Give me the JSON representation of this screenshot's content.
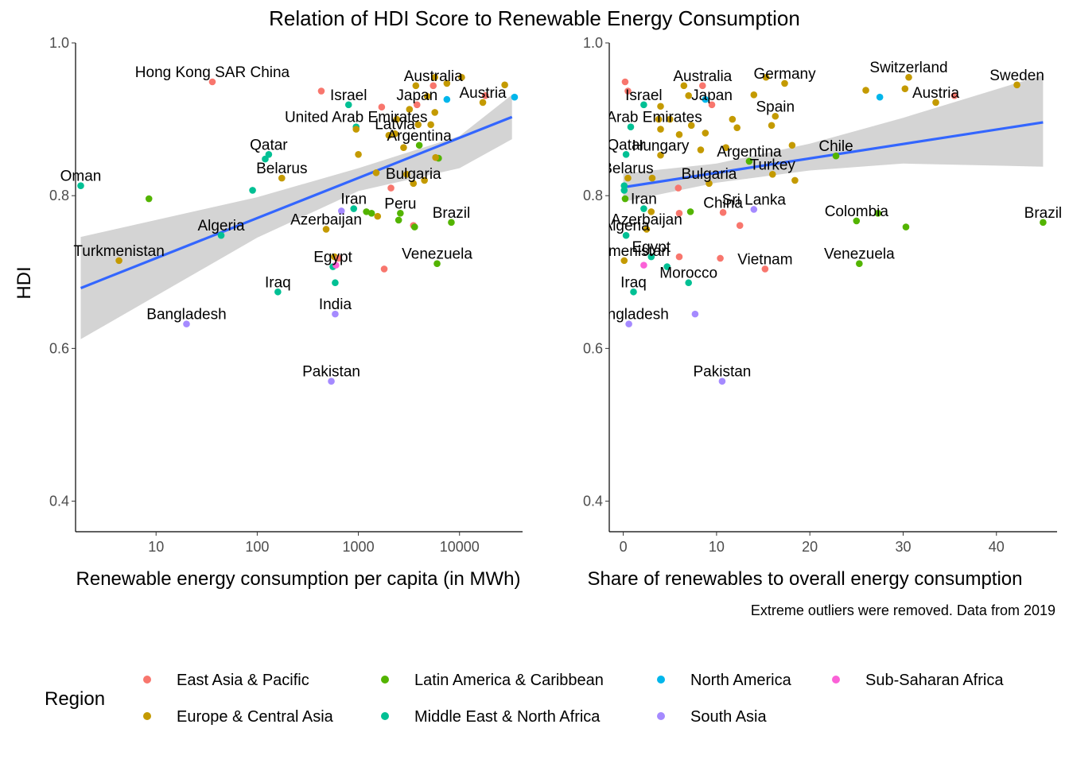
{
  "title": "Relation of HDI Score to Renewable Energy Consumption",
  "caption": "Extreme outliers were removed. Data from 2019",
  "y_axis_title": "HDI",
  "legend": {
    "title": "Region",
    "items": [
      {
        "name": "East Asia & Pacific",
        "color": "#F8766D"
      },
      {
        "name": "Europe & Central Asia",
        "color": "#C49A00"
      },
      {
        "name": "Latin America & Caribbean",
        "color": "#53B400"
      },
      {
        "name": "Middle East & North Africa",
        "color": "#00C094"
      },
      {
        "name": "North America",
        "color": "#00B6EB"
      },
      {
        "name": "South Asia",
        "color": "#A58AFF"
      },
      {
        "name": "Sub-Saharan Africa",
        "color": "#FB61D7"
      }
    ]
  },
  "chart_data": [
    {
      "type": "scatter",
      "xlabel": "Renewable energy consumption per capita (in MWh)",
      "ylabel": "HDI",
      "x_scale": "log10",
      "xlim": [
        1.6,
        42000
      ],
      "ylim": [
        0.36,
        1.0
      ],
      "x_ticks": [
        10,
        100,
        1000,
        10000
      ],
      "x_tick_labels": [
        "10",
        "100",
        "1000",
        "10000"
      ],
      "y_ticks": [
        0.4,
        0.6,
        0.8,
        1.0
      ],
      "y_tick_labels": [
        "0.4",
        "0.6",
        "0.8",
        "1.0"
      ],
      "trend_line": {
        "x": [
          1.8,
          33000
        ],
        "y": [
          0.679,
          0.903
        ]
      },
      "confidence_band": {
        "x": [
          1.8,
          100,
          1000,
          10000,
          33000
        ],
        "upper": [
          0.746,
          0.798,
          0.836,
          0.878,
          0.932
        ],
        "lower": [
          0.612,
          0.745,
          0.806,
          0.836,
          0.874
        ]
      },
      "points": [
        {
          "x": 36,
          "y": 0.949,
          "region": "East Asia & Pacific",
          "label": "Hong Kong SAR China"
        },
        {
          "x": 430,
          "y": 0.937,
          "region": "East Asia & Pacific"
        },
        {
          "x": 800,
          "y": 0.919,
          "region": "Middle East & North Africa",
          "label": "Israel"
        },
        {
          "x": 950,
          "y": 0.89,
          "region": "Middle East & North Africa",
          "label": "United Arab Emirates"
        },
        {
          "x": 1700,
          "y": 0.916,
          "region": "East Asia & Pacific"
        },
        {
          "x": 3800,
          "y": 0.919,
          "region": "East Asia & Pacific",
          "label": "Japan"
        },
        {
          "x": 5500,
          "y": 0.944,
          "region": "East Asia & Pacific",
          "label": "Australia"
        },
        {
          "x": 7500,
          "y": 0.926,
          "region": "North America"
        },
        {
          "x": 35000,
          "y": 0.929,
          "region": "North America"
        },
        {
          "x": 18000,
          "y": 0.931,
          "region": "East Asia & Pacific"
        },
        {
          "x": 17000,
          "y": 0.922,
          "region": "Europe & Central Asia",
          "label": "Austria"
        },
        {
          "x": 28000,
          "y": 0.945,
          "region": "Europe & Central Asia"
        },
        {
          "x": 10500,
          "y": 0.955,
          "region": "Europe & Central Asia"
        },
        {
          "x": 5700,
          "y": 0.955,
          "region": "Europe & Central Asia"
        },
        {
          "x": 7500,
          "y": 0.947,
          "region": "Europe & Central Asia"
        },
        {
          "x": 3700,
          "y": 0.944,
          "region": "Europe & Central Asia"
        },
        {
          "x": 4800,
          "y": 0.93,
          "region": "Europe & Central Asia"
        },
        {
          "x": 2400,
          "y": 0.9,
          "region": "Europe & Central Asia"
        },
        {
          "x": 3200,
          "y": 0.913,
          "region": "Europe & Central Asia"
        },
        {
          "x": 3900,
          "y": 0.893,
          "region": "Europe & Central Asia"
        },
        {
          "x": 5700,
          "y": 0.909,
          "region": "Europe & Central Asia"
        },
        {
          "x": 5200,
          "y": 0.893,
          "region": "Europe & Central Asia"
        },
        {
          "x": 950,
          "y": 0.887,
          "region": "Europe & Central Asia"
        },
        {
          "x": 2000,
          "y": 0.879,
          "region": "Europe & Central Asia"
        },
        {
          "x": 2300,
          "y": 0.881,
          "region": "Europe & Central Asia",
          "label": "Latvia"
        },
        {
          "x": 1000,
          "y": 0.854,
          "region": "Europe & Central Asia"
        },
        {
          "x": 2800,
          "y": 0.863,
          "region": "Europe & Central Asia"
        },
        {
          "x": 4000,
          "y": 0.866,
          "region": "Latin America & Caribbean",
          "label": "Argentina"
        },
        {
          "x": 6200,
          "y": 0.849,
          "region": "Latin America & Caribbean"
        },
        {
          "x": 5800,
          "y": 0.85,
          "region": "Europe & Central Asia"
        },
        {
          "x": 1500,
          "y": 0.83,
          "region": "Europe & Central Asia"
        },
        {
          "x": 3000,
          "y": 0.828,
          "region": "Europe & Central Asia"
        },
        {
          "x": 3500,
          "y": 0.816,
          "region": "Europe & Central Asia",
          "label": "Bulgaria"
        },
        {
          "x": 4500,
          "y": 0.82,
          "region": "Europe & Central Asia"
        },
        {
          "x": 2100,
          "y": 0.81,
          "region": "East Asia & Pacific"
        },
        {
          "x": 175,
          "y": 0.823,
          "region": "Europe & Central Asia",
          "label": "Belarus"
        },
        {
          "x": 120,
          "y": 0.848,
          "region": "Middle East & North Africa"
        },
        {
          "x": 130,
          "y": 0.854,
          "region": "Middle East & North Africa",
          "label": "Qatar"
        },
        {
          "x": 90,
          "y": 0.807,
          "region": "Middle East & North Africa"
        },
        {
          "x": 1.8,
          "y": 0.813,
          "region": "Middle East & North Africa",
          "label": "Oman"
        },
        {
          "x": 8.5,
          "y": 0.796,
          "region": "Latin America & Caribbean"
        },
        {
          "x": 44,
          "y": 0.748,
          "region": "Middle East & North Africa",
          "label": "Algeria"
        },
        {
          "x": 4.3,
          "y": 0.715,
          "region": "Europe & Central Asia",
          "label": "Turkmenistan"
        },
        {
          "x": 20,
          "y": 0.632,
          "region": "South Asia",
          "label": "Bangladesh"
        },
        {
          "x": 900,
          "y": 0.783,
          "region": "Middle East & North Africa",
          "label": "Iran"
        },
        {
          "x": 1200,
          "y": 0.779,
          "region": "Latin America & Caribbean"
        },
        {
          "x": 1350,
          "y": 0.777,
          "region": "Latin America & Caribbean"
        },
        {
          "x": 1550,
          "y": 0.773,
          "region": "Europe & Central Asia"
        },
        {
          "x": 680,
          "y": 0.78,
          "region": "South Asia"
        },
        {
          "x": 480,
          "y": 0.756,
          "region": "Europe & Central Asia",
          "label": "Azerbaijan"
        },
        {
          "x": 2600,
          "y": 0.777,
          "region": "Latin America & Caribbean",
          "label": "Peru"
        },
        {
          "x": 2500,
          "y": 0.768,
          "region": "Latin America & Caribbean"
        },
        {
          "x": 3500,
          "y": 0.761,
          "region": "East Asia & Pacific"
        },
        {
          "x": 3600,
          "y": 0.759,
          "region": "Latin America & Caribbean"
        },
        {
          "x": 8300,
          "y": 0.765,
          "region": "Latin America & Caribbean",
          "label": "Brazil"
        },
        {
          "x": 6000,
          "y": 0.711,
          "region": "Latin America & Caribbean",
          "label": "Venezuela"
        },
        {
          "x": 1800,
          "y": 0.704,
          "region": "East Asia & Pacific"
        },
        {
          "x": 560,
          "y": 0.707,
          "region": "Middle East & North Africa",
          "label": "Egypt"
        },
        {
          "x": 580,
          "y": 0.72,
          "region": "Europe & Central Asia"
        },
        {
          "x": 640,
          "y": 0.718,
          "region": "East Asia & Pacific"
        },
        {
          "x": 600,
          "y": 0.709,
          "region": "Sub-Saharan Africa"
        },
        {
          "x": 590,
          "y": 0.686,
          "region": "Middle East & North Africa"
        },
        {
          "x": 160,
          "y": 0.674,
          "region": "Middle East & North Africa",
          "label": "Iraq"
        },
        {
          "x": 590,
          "y": 0.645,
          "region": "South Asia",
          "label": "India"
        },
        {
          "x": 540,
          "y": 0.557,
          "region": "South Asia",
          "label": "Pakistan"
        }
      ]
    },
    {
      "type": "scatter",
      "xlabel": "Share of renewables to overall energy consumption",
      "ylabel": "HDI",
      "x_scale": "linear",
      "xlim": [
        -1.5,
        46.5
      ],
      "ylim": [
        0.36,
        1.0
      ],
      "x_ticks": [
        0,
        10,
        20,
        30,
        40
      ],
      "x_tick_labels": [
        "0",
        "10",
        "20",
        "30",
        "40"
      ],
      "y_ticks": [
        0.4,
        0.6,
        0.8,
        1.0
      ],
      "y_tick_labels": [
        "0.4",
        "0.6",
        "0.8",
        "1.0"
      ],
      "trend_line": {
        "x": [
          0,
          45
        ],
        "y": [
          0.811,
          0.896
        ]
      },
      "confidence_band": {
        "x": [
          0,
          10,
          20,
          30,
          45
        ],
        "upper": [
          0.829,
          0.842,
          0.868,
          0.902,
          0.958
        ],
        "lower": [
          0.792,
          0.817,
          0.833,
          0.842,
          0.838
        ]
      },
      "points": [
        {
          "x": 0.2,
          "y": 0.949,
          "region": "East Asia & Pacific"
        },
        {
          "x": 0.5,
          "y": 0.937,
          "region": "East Asia & Pacific"
        },
        {
          "x": 2.2,
          "y": 0.919,
          "region": "Middle East & North Africa",
          "label": "Israel"
        },
        {
          "x": 0.8,
          "y": 0.89,
          "region": "Middle East & North Africa",
          "label": "United Arab Emirates"
        },
        {
          "x": 9.5,
          "y": 0.919,
          "region": "East Asia & Pacific",
          "label": "Japan"
        },
        {
          "x": 8.5,
          "y": 0.944,
          "region": "East Asia & Pacific",
          "label": "Australia"
        },
        {
          "x": 8.8,
          "y": 0.926,
          "region": "North America"
        },
        {
          "x": 27.5,
          "y": 0.929,
          "region": "North America"
        },
        {
          "x": 35.5,
          "y": 0.931,
          "region": "East Asia & Pacific"
        },
        {
          "x": 33.5,
          "y": 0.922,
          "region": "Europe & Central Asia",
          "label": "Austria"
        },
        {
          "x": 42.2,
          "y": 0.945,
          "region": "Europe & Central Asia",
          "label": "Sweden"
        },
        {
          "x": 30.6,
          "y": 0.955,
          "region": "Europe & Central Asia",
          "label": "Switzerland"
        },
        {
          "x": 15.3,
          "y": 0.955,
          "region": "Europe & Central Asia"
        },
        {
          "x": 17.3,
          "y": 0.947,
          "region": "Europe & Central Asia",
          "label": "Germany"
        },
        {
          "x": 6.5,
          "y": 0.944,
          "region": "Europe & Central Asia"
        },
        {
          "x": 26,
          "y": 0.938,
          "region": "Europe & Central Asia"
        },
        {
          "x": 30.2,
          "y": 0.94,
          "region": "Europe & Central Asia"
        },
        {
          "x": 14,
          "y": 0.932,
          "region": "Europe & Central Asia"
        },
        {
          "x": 7,
          "y": 0.931,
          "region": "Europe & Central Asia"
        },
        {
          "x": 16.3,
          "y": 0.904,
          "region": "Europe & Central Asia",
          "label": "Spain"
        },
        {
          "x": 4,
          "y": 0.917,
          "region": "Europe & Central Asia"
        },
        {
          "x": 3.8,
          "y": 0.9,
          "region": "Europe & Central Asia"
        },
        {
          "x": 5,
          "y": 0.9,
          "region": "Europe & Central Asia"
        },
        {
          "x": 11.7,
          "y": 0.9,
          "region": "Europe & Central Asia"
        },
        {
          "x": 15.9,
          "y": 0.892,
          "region": "Europe & Central Asia"
        },
        {
          "x": 7.3,
          "y": 0.892,
          "region": "Europe & Central Asia"
        },
        {
          "x": 12.2,
          "y": 0.889,
          "region": "Europe & Central Asia"
        },
        {
          "x": 4,
          "y": 0.887,
          "region": "Europe & Central Asia"
        },
        {
          "x": 6,
          "y": 0.88,
          "region": "Europe & Central Asia"
        },
        {
          "x": 8.8,
          "y": 0.882,
          "region": "Europe & Central Asia"
        },
        {
          "x": 4,
          "y": 0.853,
          "region": "Europe & Central Asia",
          "label": "Hungary"
        },
        {
          "x": 8.3,
          "y": 0.86,
          "region": "Europe & Central Asia"
        },
        {
          "x": 18.1,
          "y": 0.866,
          "region": "Europe & Central Asia"
        },
        {
          "x": 11,
          "y": 0.863,
          "region": "Europe & Central Asia"
        },
        {
          "x": 22.8,
          "y": 0.852,
          "region": "Latin America & Caribbean",
          "label": "Chile"
        },
        {
          "x": 13.5,
          "y": 0.845,
          "region": "Latin America & Caribbean",
          "label": "Argentina"
        },
        {
          "x": 16,
          "y": 0.828,
          "region": "Europe & Central Asia",
          "label": "Turkey"
        },
        {
          "x": 18.4,
          "y": 0.82,
          "region": "Europe & Central Asia"
        },
        {
          "x": 9.2,
          "y": 0.816,
          "region": "Europe & Central Asia",
          "label": "Bulgaria"
        },
        {
          "x": 5.9,
          "y": 0.81,
          "region": "East Asia & Pacific"
        },
        {
          "x": 0.5,
          "y": 0.823,
          "region": "Europe & Central Asia",
          "label": "Belarus"
        },
        {
          "x": 0.3,
          "y": 0.854,
          "region": "Middle East & North Africa",
          "label": "Qatar"
        },
        {
          "x": 3.1,
          "y": 0.823,
          "region": "Europe & Central Asia"
        },
        {
          "x": 0.1,
          "y": 0.813,
          "region": "Middle East & North Africa"
        },
        {
          "x": 0.1,
          "y": 0.807,
          "region": "Middle East & North Africa"
        },
        {
          "x": 0.2,
          "y": 0.796,
          "region": "Latin America & Caribbean"
        },
        {
          "x": 2.2,
          "y": 0.783,
          "region": "Middle East & North Africa",
          "label": "Iran"
        },
        {
          "x": 14,
          "y": 0.782,
          "region": "South Asia",
          "label": "Sri Lanka"
        },
        {
          "x": 10.7,
          "y": 0.778,
          "region": "East Asia & Pacific",
          "label": "China"
        },
        {
          "x": 7.2,
          "y": 0.779,
          "region": "Latin America & Caribbean"
        },
        {
          "x": 6,
          "y": 0.777,
          "region": "East Asia & Pacific"
        },
        {
          "x": 3,
          "y": 0.779,
          "region": "Europe & Central Asia"
        },
        {
          "x": 2.5,
          "y": 0.756,
          "region": "Europe & Central Asia",
          "label": "Azerbaijan"
        },
        {
          "x": 0.3,
          "y": 0.748,
          "region": "Middle East & North Africa",
          "label": "Algeria"
        },
        {
          "x": 25,
          "y": 0.767,
          "region": "Latin America & Caribbean",
          "label": "Colombia"
        },
        {
          "x": 27.3,
          "y": 0.777,
          "region": "Latin America & Caribbean"
        },
        {
          "x": 30.3,
          "y": 0.759,
          "region": "Latin America & Caribbean"
        },
        {
          "x": 12.5,
          "y": 0.761,
          "region": "East Asia & Pacific"
        },
        {
          "x": 45,
          "y": 0.765,
          "region": "Latin America & Caribbean",
          "label": "Brazil"
        },
        {
          "x": 25.3,
          "y": 0.711,
          "region": "Latin America & Caribbean",
          "label": "Venezuela"
        },
        {
          "x": 10.4,
          "y": 0.718,
          "region": "East Asia & Pacific"
        },
        {
          "x": 15.2,
          "y": 0.704,
          "region": "East Asia & Pacific",
          "label": "Vietnam"
        },
        {
          "x": 3,
          "y": 0.72,
          "region": "Middle East & North Africa",
          "label": "Egypt"
        },
        {
          "x": 6,
          "y": 0.72,
          "region": "East Asia & Pacific"
        },
        {
          "x": 4.7,
          "y": 0.707,
          "region": "Middle East & North Africa"
        },
        {
          "x": 2.2,
          "y": 0.709,
          "region": "Sub-Saharan Africa"
        },
        {
          "x": 0.1,
          "y": 0.715,
          "region": "Europe & Central Asia",
          "label": "Turkmenistan"
        },
        {
          "x": 7,
          "y": 0.686,
          "region": "Middle East & North Africa",
          "label": "Morocco"
        },
        {
          "x": 1.1,
          "y": 0.674,
          "region": "Middle East & North Africa",
          "label": "Iraq"
        },
        {
          "x": 0.6,
          "y": 0.632,
          "region": "South Asia",
          "label": "Bangladesh"
        },
        {
          "x": 7.7,
          "y": 0.645,
          "region": "South Asia"
        },
        {
          "x": 10.6,
          "y": 0.557,
          "region": "South Asia",
          "label": "Pakistan"
        }
      ]
    }
  ]
}
